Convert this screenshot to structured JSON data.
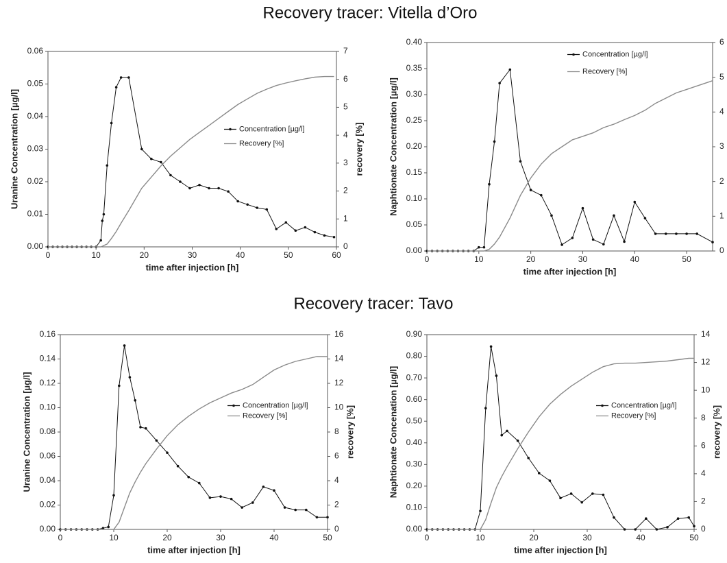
{
  "sections": [
    {
      "title": "Recovery tracer: Vitella d’Oro"
    },
    {
      "title": "Recovery tracer: Tavo"
    }
  ],
  "chart_data": [
    {
      "type": "line",
      "xlabel": "time after injection [h]",
      "ylabel": "Uranine Concentration [µg/l]",
      "y2label": "recovery [%]",
      "x": [
        0,
        1,
        2,
        3,
        4,
        5,
        6,
        7,
        8,
        9,
        10,
        11,
        11.3,
        11.6,
        12.3,
        13.2,
        14.2,
        15.2,
        16.8,
        19.5,
        21.5,
        23.5,
        25.5,
        27.5,
        29.5,
        31.5,
        33.5,
        35.5,
        37.5,
        39.5,
        41.5,
        43.5,
        45.5,
        47.5,
        49.5,
        51.5,
        53.5,
        55.5,
        57.5,
        59.5
      ],
      "series": [
        {
          "name": "Concentration [µg/l]",
          "color": "#111111",
          "marker": "circle",
          "values": [
            0,
            0,
            0,
            0,
            0,
            0,
            0,
            0,
            0,
            0,
            0,
            0.002,
            0.008,
            0.01,
            0.025,
            0.038,
            0.049,
            0.052,
            0.052,
            0.03,
            0.027,
            0.026,
            0.022,
            0.02,
            0.018,
            0.019,
            0.018,
            0.018,
            0.017,
            0.014,
            0.013,
            0.012,
            0.0115,
            0.0055,
            0.0075,
            0.005,
            0.006,
            0.0045,
            0.0035,
            0.003
          ]
        },
        {
          "name": "Recovery [%]",
          "color": "#8a8a8a",
          "axis": "y2",
          "values": [
            0,
            0,
            0,
            0,
            0,
            0,
            0,
            0,
            0,
            0,
            0,
            0,
            0.02,
            0.05,
            0.1,
            0.3,
            0.55,
            0.85,
            1.3,
            2.1,
            2.5,
            2.9,
            3.25,
            3.55,
            3.85,
            4.1,
            4.35,
            4.6,
            4.85,
            5.1,
            5.3,
            5.5,
            5.65,
            5.78,
            5.87,
            5.95,
            6.02,
            6.08,
            6.1,
            6.1
          ]
        }
      ],
      "xlim": [
        0,
        60
      ],
      "xticks": [
        0,
        10,
        20,
        30,
        40,
        50,
        60
      ],
      "ylim": [
        0,
        0.06
      ],
      "yticks": [
        {
          "value": 0,
          "label": "0.00"
        },
        {
          "value": 0.01,
          "label": "0.01"
        },
        {
          "value": 0.02,
          "label": "0.02"
        },
        {
          "value": 0.03,
          "label": "0.03"
        },
        {
          "value": 0.04,
          "label": "0.04"
        },
        {
          "value": 0.05,
          "label": "0.05"
        },
        {
          "value": 0.06,
          "label": "0.06"
        }
      ],
      "y2lim": [
        0,
        7
      ],
      "y2ticks": [
        0,
        1,
        2,
        3,
        4,
        5,
        6,
        7
      ]
    },
    {
      "type": "line",
      "xlabel": "time after injection [h]",
      "ylabel": "Naphtionate Concentration [µg/l]",
      "y2label": "recovery [%]",
      "x": [
        0,
        1,
        2,
        3,
        4,
        5,
        6,
        7,
        8,
        9,
        10,
        11,
        12,
        13,
        14,
        16,
        18,
        20,
        22,
        24,
        26,
        28,
        30,
        32,
        34,
        36,
        38,
        40,
        42,
        44,
        46,
        48,
        50,
        52,
        55
      ],
      "series": [
        {
          "name": "Concentration [µg/l]",
          "color": "#111111",
          "marker": "circle",
          "values": [
            0,
            0,
            0,
            0,
            0,
            0,
            0,
            0,
            0,
            0,
            0.007,
            0.007,
            0.128,
            0.21,
            0.322,
            0.348,
            0.172,
            0.117,
            0.107,
            0.068,
            0.012,
            0.025,
            0.082,
            0.022,
            0.013,
            0.068,
            0.018,
            0.094,
            0.063,
            0.033,
            0.033,
            0.033,
            0.033,
            0.033,
            0.017
          ]
        },
        {
          "name": "Recovery [%]",
          "color": "#8a8a8a",
          "axis": "y2",
          "values": [
            0,
            0,
            0,
            0,
            0,
            0,
            0,
            0,
            0,
            0,
            0,
            0,
            0.05,
            0.2,
            0.4,
            0.95,
            1.6,
            2.1,
            2.5,
            2.8,
            3.0,
            3.2,
            3.3,
            3.4,
            3.55,
            3.65,
            3.78,
            3.9,
            4.05,
            4.25,
            4.4,
            4.55,
            4.65,
            4.75,
            4.9
          ]
        }
      ],
      "xlim": [
        0,
        55
      ],
      "xticks": [
        0,
        10,
        20,
        30,
        40,
        50
      ],
      "ylim": [
        0,
        0.4
      ],
      "yticks": [
        {
          "value": 0,
          "label": "0.00"
        },
        {
          "value": 0.05,
          "label": "0.05"
        },
        {
          "value": 0.1,
          "label": "0.10"
        },
        {
          "value": 0.15,
          "label": "0.15"
        },
        {
          "value": 0.2,
          "label": "0.20"
        },
        {
          "value": 0.25,
          "label": "0.25"
        },
        {
          "value": 0.3,
          "label": "0.30"
        },
        {
          "value": 0.35,
          "label": "0.35"
        },
        {
          "value": 0.4,
          "label": "0.40"
        }
      ],
      "y2lim": [
        0,
        6
      ],
      "y2ticks": [
        0,
        1,
        2,
        3,
        4,
        5,
        6
      ]
    },
    {
      "type": "line",
      "xlabel": "time after injection [h]",
      "ylabel": "Uranine Concentration [µg/l]",
      "y2label": "recovery [%]",
      "x": [
        0,
        1,
        2,
        3,
        4,
        5,
        6,
        7,
        8,
        9,
        10,
        11,
        12,
        13,
        14,
        15,
        16,
        18,
        20,
        22,
        24,
        26,
        28,
        30,
        32,
        34,
        36,
        38,
        40,
        42,
        44,
        46,
        48,
        50
      ],
      "series": [
        {
          "name": "Concentration [µg/l]",
          "color": "#111111",
          "marker": "circle",
          "values": [
            0,
            0,
            0,
            0,
            0,
            0,
            0,
            0,
            0.001,
            0.002,
            0.028,
            0.118,
            0.151,
            0.125,
            0.106,
            0.084,
            0.083,
            0.073,
            0.063,
            0.052,
            0.043,
            0.038,
            0.026,
            0.027,
            0.025,
            0.018,
            0.022,
            0.035,
            0.032,
            0.018,
            0.016,
            0.016,
            0.01,
            0.01
          ]
        },
        {
          "name": "Recovery [%]",
          "color": "#8a8a8a",
          "axis": "y2",
          "values": [
            0,
            0,
            0,
            0,
            0,
            0,
            0,
            0,
            0,
            0,
            0,
            0.6,
            1.8,
            3.0,
            3.9,
            4.7,
            5.4,
            6.6,
            7.7,
            8.6,
            9.3,
            9.9,
            10.4,
            10.8,
            11.2,
            11.5,
            11.9,
            12.5,
            13.1,
            13.5,
            13.8,
            14.0,
            14.2,
            14.2
          ]
        }
      ],
      "xlim": [
        0,
        50
      ],
      "xticks": [
        0,
        10,
        20,
        30,
        40,
        50
      ],
      "ylim": [
        0,
        0.16
      ],
      "yticks": [
        {
          "value": 0,
          "label": "0.00"
        },
        {
          "value": 0.02,
          "label": "0.02"
        },
        {
          "value": 0.04,
          "label": "0.04"
        },
        {
          "value": 0.06,
          "label": "0.06"
        },
        {
          "value": 0.08,
          "label": "0.08"
        },
        {
          "value": 0.1,
          "label": "0.10"
        },
        {
          "value": 0.12,
          "label": "0.12"
        },
        {
          "value": 0.14,
          "label": "0.14"
        },
        {
          "value": 0.16,
          "label": "0.16"
        }
      ],
      "y2lim": [
        0,
        16
      ],
      "y2ticks": [
        0,
        2,
        4,
        6,
        8,
        10,
        12,
        14,
        16
      ]
    },
    {
      "type": "line",
      "xlabel": "time after injection [h]",
      "ylabel": "Naphtionate Concenation [µg/l]",
      "y2label": "recovery [%]",
      "x": [
        0,
        1,
        2,
        3,
        4,
        5,
        6,
        7,
        8,
        9,
        10,
        11,
        12,
        13,
        14,
        15,
        17,
        19,
        21,
        23,
        25,
        27,
        29,
        31,
        33,
        35,
        37,
        39,
        41,
        43,
        45,
        47,
        49,
        50
      ],
      "series": [
        {
          "name": "Concentration [µg/l]",
          "color": "#111111",
          "marker": "circle",
          "values": [
            0,
            0,
            0,
            0,
            0,
            0,
            0,
            0,
            0,
            0,
            0.085,
            0.56,
            0.845,
            0.71,
            0.435,
            0.455,
            0.41,
            0.33,
            0.26,
            0.225,
            0.145,
            0.165,
            0.125,
            0.165,
            0.16,
            0.055,
            0,
            0,
            0.05,
            0,
            0.01,
            0.05,
            0.055,
            0.015
          ]
        },
        {
          "name": "Recovery [%]",
          "color": "#8a8a8a",
          "axis": "y2",
          "values": [
            0,
            0,
            0,
            0,
            0,
            0,
            0,
            0,
            0,
            0,
            0,
            0.7,
            1.9,
            3.0,
            3.8,
            4.5,
            5.8,
            7.0,
            8.1,
            9.0,
            9.7,
            10.3,
            10.8,
            11.3,
            11.7,
            11.9,
            11.95,
            11.95,
            12.0,
            12.05,
            12.1,
            12.2,
            12.3,
            12.3
          ]
        }
      ],
      "xlim": [
        0,
        50
      ],
      "xticks": [
        0,
        10,
        20,
        30,
        40,
        50
      ],
      "ylim": [
        0,
        0.9
      ],
      "yticks": [
        {
          "value": 0,
          "label": "0.00"
        },
        {
          "value": 0.1,
          "label": "0.10"
        },
        {
          "value": 0.2,
          "label": "0.20"
        },
        {
          "value": 0.3,
          "label": "0.30"
        },
        {
          "value": 0.4,
          "label": "0.40"
        },
        {
          "value": 0.5,
          "label": "0.50"
        },
        {
          "value": 0.6,
          "label": "0.60"
        },
        {
          "value": 0.7,
          "label": "0.70"
        },
        {
          "value": 0.8,
          "label": "0.80"
        },
        {
          "value": 0.9,
          "label": "0.90"
        }
      ],
      "y2lim": [
        0,
        14
      ],
      "y2ticks": [
        0,
        2,
        4,
        6,
        8,
        10,
        12,
        14
      ]
    }
  ]
}
